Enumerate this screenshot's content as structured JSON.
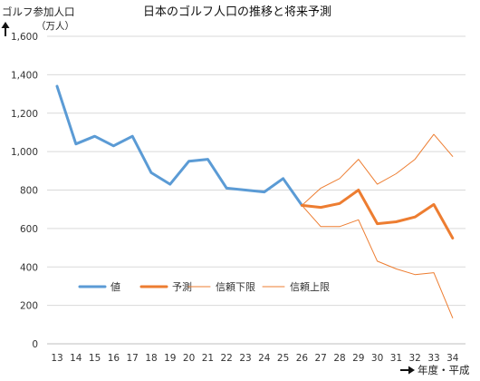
{
  "chart_data": {
    "type": "line",
    "title": "日本のゴルフ人口の推移と将来予測",
    "ylabel": "ゴルフ参加人口",
    "yunit": "（万人）",
    "xlabel": "年度・平成",
    "ylim": [
      0,
      1600
    ],
    "yticks": [
      0,
      200,
      400,
      600,
      800,
      1000,
      1200,
      1400,
      1600
    ],
    "ytick_labels": [
      "0",
      "200",
      "400",
      "600",
      "800",
      "1,000",
      "1,200",
      "1,400",
      "1,600"
    ],
    "x": [
      13,
      14,
      15,
      16,
      17,
      18,
      19,
      20,
      21,
      22,
      23,
      24,
      25,
      26,
      27,
      28,
      29,
      30,
      31,
      32,
      33,
      34
    ],
    "grid": true,
    "legend_position": "bottom-left-inside",
    "series": [
      {
        "name": "値",
        "color": "#5b9bd5",
        "width": 3,
        "x": [
          13,
          14,
          15,
          16,
          17,
          18,
          19,
          20,
          21,
          22,
          23,
          24,
          25,
          26
        ],
        "values": [
          1340,
          1040,
          1080,
          1030,
          1080,
          890,
          830,
          950,
          960,
          810,
          800,
          790,
          860,
          720
        ]
      },
      {
        "name": "予測",
        "color": "#ed7d31",
        "width": 3,
        "x": [
          26,
          27,
          28,
          29,
          30,
          31,
          32,
          33,
          34
        ],
        "values": [
          720,
          710,
          730,
          800,
          625,
          635,
          660,
          725,
          550
        ]
      },
      {
        "name": "信頼下限",
        "color": "#ed7d31",
        "width": 1,
        "x": [
          26,
          27,
          28,
          29,
          30,
          31,
          32,
          33,
          34
        ],
        "values": [
          720,
          610,
          610,
          645,
          430,
          390,
          360,
          370,
          135
        ]
      },
      {
        "name": "信頼上限",
        "color": "#ed7d31",
        "width": 1,
        "x": [
          26,
          27,
          28,
          29,
          30,
          31,
          32,
          33,
          34
        ],
        "values": [
          720,
          810,
          860,
          960,
          830,
          885,
          960,
          1090,
          975
        ]
      }
    ]
  }
}
